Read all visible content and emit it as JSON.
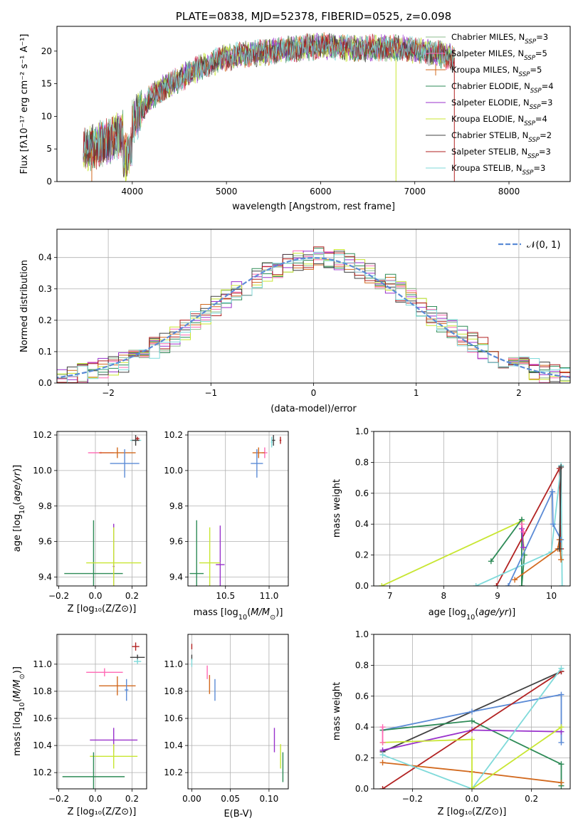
{
  "colors": {
    "Chabrier MILES": "#8fbc8f",
    "Salpeter MILES": "#ff69b4",
    "Kroupa MILES": "#d2691e",
    "Chabrier ELODIE": "#2e8b57",
    "Salpeter ELODIE": "#9932cc",
    "Kroupa ELODIE": "#c8e632",
    "Chabrier STELIB": "#404040",
    "Salpeter STELIB": "#b22222",
    "Kroupa STELIB": "#7fdada",
    "normal": "#5b8bd6"
  },
  "chart_data": [
    {
      "id": "spectrum",
      "type": "line",
      "title": "PLATE=0838, MJD=52378, FIBERID=0525, z=0.098",
      "xlabel": "wavelength [Angstrom, rest frame]",
      "ylabel": "Flux [fλ10⁻¹⁷ erg cm⁻² s⁻¹ A⁻¹]",
      "xlim": [
        3200,
        8650
      ],
      "ylim": [
        0,
        23.8
      ],
      "xticks": [
        4000,
        5000,
        6000,
        7000,
        8000
      ],
      "yticks": [
        0,
        5,
        10,
        15,
        20
      ],
      "grid": false,
      "legend_position": "top-right",
      "continuum_anchor": {
        "x": [
          3480,
          3600,
          3800,
          3950,
          4050,
          4200,
          4400,
          4600,
          4800,
          5000,
          5200,
          5400,
          5600,
          5800,
          6000,
          6200,
          6400,
          6600,
          6800,
          7000,
          7200,
          7420
        ],
        "y": [
          4.5,
          5.5,
          6.5,
          8.0,
          10.0,
          13.0,
          15.0,
          16.5,
          18.0,
          19.0,
          19.5,
          19.8,
          20.2,
          20.5,
          20.8,
          20.6,
          20.4,
          20.5,
          20.5,
          20.2,
          19.8,
          19.0
        ]
      },
      "series": [
        {
          "name": "Chabrier MILES, N_SSP=3",
          "color_key": "Chabrier MILES"
        },
        {
          "name": "Salpeter MILES, N_SSP=5",
          "color_key": "Salpeter MILES"
        },
        {
          "name": "Kroupa MILES, N_SSP=5",
          "color_key": "Kroupa MILES"
        },
        {
          "name": "Chabrier ELODIE, N_SSP=4",
          "color_key": "Chabrier ELODIE"
        },
        {
          "name": "Salpeter ELODIE, N_SSP=3",
          "color_key": "Salpeter ELODIE"
        },
        {
          "name": "Kroupa ELODIE, N_SSP=4",
          "color_key": "Kroupa ELODIE"
        },
        {
          "name": "Chabrier STELIB, N_SSP=2",
          "color_key": "Chabrier STELIB"
        },
        {
          "name": "Salpeter STELIB, N_SSP=3",
          "color_key": "Salpeter STELIB"
        },
        {
          "name": "Kroupa STELIB, N_SSP=3",
          "color_key": "Kroupa STELIB"
        }
      ],
      "legend": [
        {
          "prefix": "Chabrier MILES, N",
          "sub": "SSP",
          "suffix": "=3",
          "color_key": "Chabrier MILES"
        },
        {
          "prefix": "Salpeter MILES, N",
          "sub": "SSP",
          "suffix": "=5",
          "color_key": "Salpeter MILES"
        },
        {
          "prefix": "Kroupa MILES, N",
          "sub": "SSP",
          "suffix": "=5",
          "color_key": "Kroupa MILES"
        },
        {
          "prefix": "Chabrier ELODIE, N",
          "sub": "SSP",
          "suffix": "=4",
          "color_key": "Chabrier ELODIE"
        },
        {
          "prefix": "Salpeter ELODIE, N",
          "sub": "SSP",
          "suffix": "=3",
          "color_key": "Salpeter ELODIE"
        },
        {
          "prefix": "Kroupa ELODIE, N",
          "sub": "SSP",
          "suffix": "=4",
          "color_key": "Kroupa ELODIE"
        },
        {
          "prefix": "Chabrier STELIB, N",
          "sub": "SSP",
          "suffix": "=2",
          "color_key": "Chabrier STELIB"
        },
        {
          "prefix": "Salpeter STELIB, N",
          "sub": "SSP",
          "suffix": "=3",
          "color_key": "Salpeter STELIB"
        },
        {
          "prefix": "Kroupa STELIB, N",
          "sub": "SSP",
          "suffix": "=3",
          "color_key": "Kroupa STELIB"
        }
      ]
    },
    {
      "id": "residuals",
      "type": "step",
      "xlabel": "(data-model)/error",
      "ylabel": "Normed distribution",
      "xlim": [
        -2.5,
        2.5
      ],
      "ylim": [
        0,
        0.49
      ],
      "xticks": [
        -2,
        -1,
        0,
        1,
        2
      ],
      "xtick_labels": [
        "−2",
        "−1",
        "0",
        "1",
        "2"
      ],
      "yticks": [
        0.0,
        0.1,
        0.2,
        0.3,
        0.4
      ],
      "ytick_labels": [
        "0.0",
        "0.1",
        "0.2",
        "0.3",
        "0.4"
      ],
      "grid": true,
      "legend_position": "top-right",
      "legend_label": "𝒩(0, 1)",
      "bin_width": 0.1,
      "series_color_keys": [
        "Chabrier MILES",
        "Salpeter MILES",
        "Kroupa MILES",
        "Chabrier ELODIE",
        "Salpeter ELODIE",
        "Kroupa ELODIE",
        "Chabrier STELIB",
        "Salpeter STELIB",
        "Kroupa STELIB",
        "normal"
      ]
    },
    {
      "id": "age_vs_Z",
      "type": "errorbar",
      "xlabel": "Z [log₁₀(Z/Z⊙)]",
      "ylabel": "age  [log₁₀(age/yr)]",
      "xlim": [
        -0.21,
        0.28
      ],
      "ylim": [
        9.35,
        10.22
      ],
      "xticks": [
        -0.2,
        0.0,
        0.2
      ],
      "xtick_labels": [
        "−0.2",
        "0.0",
        "0.2"
      ],
      "yticks": [
        9.4,
        9.6,
        9.8,
        10.0,
        10.2
      ],
      "ytick_labels": [
        "9.4",
        "9.6",
        "9.8",
        "10.0",
        "10.2"
      ],
      "grid": true,
      "points": [
        {
          "color_key": "Salpeter MILES",
          "x": 0.03,
          "xerr": 0.07,
          "y": 10.1,
          "yerr": 0.005
        },
        {
          "color_key": "Kroupa MILES",
          "x": 0.12,
          "xerr": 0.1,
          "y": 10.1,
          "yerr": 0.03
        },
        {
          "color_key": "normal",
          "x": 0.16,
          "xerr": 0.08,
          "y": 10.04,
          "yerr": 0.08
        },
        {
          "color_key": "Kroupa STELIB",
          "x": 0.22,
          "xerr": 0.03,
          "y": 10.17,
          "yerr": 0.01
        },
        {
          "color_key": "Chabrier STELIB",
          "x": 0.22,
          "xerr": 0.02,
          "y": 10.17,
          "yerr": 0.03
        },
        {
          "color_key": "Salpeter STELIB",
          "x": 0.23,
          "xerr": 0.01,
          "y": 10.18,
          "yerr": 0.01
        },
        {
          "color_key": "Chabrier ELODIE",
          "x": -0.01,
          "xerr": 0.16,
          "y": 9.42,
          "yerr": 0.3
        },
        {
          "color_key": "Salpeter ELODIE",
          "x": 0.1,
          "xerr": 0.005,
          "y": 9.46,
          "yerr": 0.24
        },
        {
          "color_key": "Kroupa ELODIE",
          "x": 0.1,
          "xerr": 0.15,
          "y": 9.48,
          "yerr": 0.2
        }
      ]
    },
    {
      "id": "age_vs_mass",
      "type": "errorbar",
      "xlabel": "mass [log₁₀(M/M⊙)]",
      "xlim": [
        10.07,
        11.22
      ],
      "ylim": [
        9.35,
        10.22
      ],
      "xticks": [
        10.5,
        11.0
      ],
      "xtick_labels": [
        "10.5",
        "11.0"
      ],
      "yticks": [
        9.4,
        9.6,
        9.8,
        10.0,
        10.2
      ],
      "ytick_labels": [
        "9.4",
        "9.6",
        "9.8",
        "10.0",
        "10.2"
      ],
      "grid": true,
      "points": [
        {
          "color_key": "Salpeter MILES",
          "x": 10.95,
          "xerr": 0.03,
          "y": 10.1,
          "yerr": 0.03
        },
        {
          "color_key": "Kroupa MILES",
          "x": 10.88,
          "xerr": 0.07,
          "y": 10.1,
          "yerr": 0.03
        },
        {
          "color_key": "normal",
          "x": 10.86,
          "xerr": 0.07,
          "y": 10.04,
          "yerr": 0.08
        },
        {
          "color_key": "Chabrier STELIB",
          "x": 11.05,
          "xerr": 0.02,
          "y": 10.17,
          "yerr": 0.03
        },
        {
          "color_key": "Kroupa STELIB",
          "x": 11.03,
          "xerr": 0.01,
          "y": 10.16,
          "yerr": 0.03
        },
        {
          "color_key": "Salpeter STELIB",
          "x": 11.13,
          "xerr": 0.01,
          "y": 10.17,
          "yerr": 0.02
        },
        {
          "color_key": "Chabrier ELODIE",
          "x": 10.17,
          "xerr": 0.08,
          "y": 9.42,
          "yerr": 0.3
        },
        {
          "color_key": "Salpeter ELODIE",
          "x": 10.44,
          "xerr": 0.05,
          "y": 9.47,
          "yerr": 0.22
        },
        {
          "color_key": "Kroupa ELODIE",
          "x": 10.32,
          "xerr": 0.12,
          "y": 9.48,
          "yerr": 0.2
        }
      ]
    },
    {
      "id": "weight_vs_age",
      "type": "line",
      "xlabel": "age  [log₁₀(age/yr)]",
      "ylabel": "mass weight",
      "xlim": [
        6.7,
        10.35
      ],
      "ylim": [
        0,
        1
      ],
      "xticks": [
        7,
        8,
        9,
        10
      ],
      "xtick_labels": [
        "7",
        "8",
        "9",
        "10"
      ],
      "yticks": [
        0.0,
        0.2,
        0.4,
        0.6,
        0.8,
        1.0
      ],
      "ytick_labels": [
        "0.0",
        "0.2",
        "0.4",
        "0.6",
        "0.8",
        "1.0"
      ],
      "grid": true,
      "series": [
        {
          "color_key": "Kroupa ELODIE",
          "x": [
            6.85,
            9.45,
            9.5
          ],
          "y": [
            0.0,
            0.42,
            0.2
          ]
        },
        {
          "color_key": "Chabrier ELODIE",
          "x": [
            8.88,
            9.45,
            9.45,
            9.5
          ],
          "y": [
            0.16,
            0.43,
            0.0,
            0.2
          ]
        },
        {
          "color_key": "Salpeter STELIB",
          "x": [
            8.98,
            10.15,
            10.18
          ],
          "y": [
            0.0,
            0.76,
            0.24
          ]
        },
        {
          "color_key": "Kroupa STELIB",
          "x": [
            8.6,
            10.0,
            10.18,
            10.2
          ],
          "y": [
            0.0,
            0.22,
            0.78,
            0.0
          ]
        },
        {
          "color_key": "normal",
          "x": [
            9.2,
            10.02,
            10.03,
            10.18
          ],
          "y": [
            0.0,
            0.61,
            0.4,
            0.3
          ]
        },
        {
          "color_key": "Kroupa MILES",
          "x": [
            9.32,
            10.12,
            10.15,
            10.18
          ],
          "y": [
            0.04,
            0.24,
            0.3,
            0.17
          ]
        },
        {
          "color_key": "Salpeter ELODIE",
          "x": [
            9.45,
            9.48
          ],
          "y": [
            0.37,
            0.25
          ]
        },
        {
          "color_key": "Salpeter MILES",
          "x": [
            9.45,
            9.48
          ],
          "y": [
            0.4,
            0.35
          ]
        },
        {
          "color_key": "Chabrier STELIB",
          "x": [
            10.15,
            10.18
          ],
          "y": [
            0.24,
            0.77
          ]
        }
      ]
    },
    {
      "id": "mass_vs_Z",
      "type": "errorbar",
      "xlabel": "Z [log₁₀(Z/Z⊙)]",
      "ylabel": "mass [log₁₀(M/M⊙)]",
      "xlim": [
        -0.21,
        0.28
      ],
      "ylim": [
        10.08,
        11.22
      ],
      "xticks": [
        -0.2,
        0.0,
        0.2
      ],
      "xtick_labels": [
        "−0.2",
        "0.0",
        "0.2"
      ],
      "yticks": [
        10.2,
        10.4,
        10.6,
        10.8,
        11.0
      ],
      "ytick_labels": [
        "10.2",
        "10.4",
        "10.6",
        "10.8",
        "11.0"
      ],
      "grid": true,
      "points": [
        {
          "color_key": "Salpeter STELIB",
          "x": 0.22,
          "xerr": 0.02,
          "y": 11.13,
          "yerr": 0.03
        },
        {
          "color_key": "Chabrier STELIB",
          "x": 0.23,
          "xerr": 0.04,
          "y": 11.05,
          "yerr": 0.02
        },
        {
          "color_key": "Kroupa STELIB",
          "x": 0.23,
          "xerr": 0.02,
          "y": 11.02,
          "yerr": 0.02
        },
        {
          "color_key": "Salpeter MILES",
          "x": 0.05,
          "xerr": 0.1,
          "y": 10.94,
          "yerr": 0.03
        },
        {
          "color_key": "Kroupa MILES",
          "x": 0.12,
          "xerr": 0.1,
          "y": 10.84,
          "yerr": 0.07
        },
        {
          "color_key": "normal",
          "x": 0.17,
          "xerr": 0.01,
          "y": 10.81,
          "yerr": 0.08
        },
        {
          "color_key": "Salpeter ELODIE",
          "x": 0.1,
          "xerr": 0.13,
          "y": 10.44,
          "yerr": 0.09
        },
        {
          "color_key": "Kroupa ELODIE",
          "x": 0.1,
          "xerr": 0.13,
          "y": 10.32,
          "yerr": 0.09
        },
        {
          "color_key": "Chabrier ELODIE",
          "x": -0.01,
          "xerr": 0.17,
          "y": 10.17,
          "yerr": 0.18
        }
      ]
    },
    {
      "id": "mass_vs_ebv",
      "type": "errorbar",
      "xlabel": "E(B-V)",
      "xlim": [
        -0.005,
        0.125
      ],
      "ylim": [
        10.08,
        11.22
      ],
      "xticks": [
        0.0,
        0.05,
        0.1
      ],
      "xtick_labels": [
        "0.00",
        "0.05",
        "0.10"
      ],
      "yticks": [
        10.2,
        10.4,
        10.6,
        10.8,
        11.0
      ],
      "ytick_labels": [
        "10.2",
        "10.4",
        "10.6",
        "10.8",
        "11.0"
      ],
      "grid": true,
      "points": [
        {
          "color_key": "Salpeter STELIB",
          "x": 0.0,
          "xerr": 0.0,
          "y": 11.13,
          "yerr": 0.02
        },
        {
          "color_key": "Chabrier STELIB",
          "x": 0.0,
          "xerr": 0.0,
          "y": 11.05,
          "yerr": 0.02
        },
        {
          "color_key": "Kroupa STELIB",
          "x": 0.0,
          "xerr": 0.0,
          "y": 11.01,
          "yerr": 0.03
        },
        {
          "color_key": "Salpeter MILES",
          "x": 0.02,
          "xerr": 0.0,
          "y": 10.94,
          "yerr": 0.05
        },
        {
          "color_key": "Kroupa MILES",
          "x": 0.023,
          "xerr": 0.0,
          "y": 10.85,
          "yerr": 0.07
        },
        {
          "color_key": "normal",
          "x": 0.03,
          "xerr": 0.0,
          "y": 10.81,
          "yerr": 0.08
        },
        {
          "color_key": "Salpeter ELODIE",
          "x": 0.107,
          "xerr": 0.0,
          "y": 10.44,
          "yerr": 0.09
        },
        {
          "color_key": "Kroupa ELODIE",
          "x": 0.115,
          "xerr": 0.0,
          "y": 10.32,
          "yerr": 0.09
        },
        {
          "color_key": "Chabrier ELODIE",
          "x": 0.118,
          "xerr": 0.0,
          "y": 10.24,
          "yerr": 0.11
        }
      ]
    },
    {
      "id": "weight_vs_Z",
      "type": "line",
      "xlabel": "Z [log₁₀(Z/Z⊙)]",
      "ylabel": "mass weight",
      "xlim": [
        -0.33,
        0.33
      ],
      "ylim": [
        0,
        1
      ],
      "xticks": [
        -0.2,
        0.0,
        0.2
      ],
      "xtick_labels": [
        "−0.2",
        "0.0",
        "0.2"
      ],
      "yticks": [
        0.0,
        0.2,
        0.4,
        0.6,
        0.8,
        1.0
      ],
      "ytick_labels": [
        "0.0",
        "0.2",
        "0.4",
        "0.6",
        "0.8",
        "1.0"
      ],
      "grid": true,
      "series": [
        {
          "color_key": "Chabrier STELIB",
          "x": [
            -0.3,
            0.3
          ],
          "y": [
            0.24,
            0.76
          ]
        },
        {
          "color_key": "normal",
          "x": [
            -0.3,
            0.0,
            0.3,
            0.3
          ],
          "y": [
            0.38,
            0.5,
            0.61,
            0.3
          ]
        },
        {
          "color_key": "Chabrier ELODIE",
          "x": [
            -0.3,
            0.0,
            0.3,
            0.3
          ],
          "y": [
            0.38,
            0.44,
            0.16,
            0.02
          ]
        },
        {
          "color_key": "Salpeter ELODIE",
          "x": [
            -0.3,
            0.0,
            0.3
          ],
          "y": [
            0.25,
            0.38,
            0.37
          ]
        },
        {
          "color_key": "Salpeter STELIB",
          "x": [
            -0.3,
            0.3
          ],
          "y": [
            0.0,
            0.76
          ]
        },
        {
          "color_key": "Kroupa MILES",
          "x": [
            -0.3,
            0.0,
            0.3
          ],
          "y": [
            0.17,
            0.11,
            0.04
          ]
        },
        {
          "color_key": "Kroupa STELIB",
          "x": [
            -0.3,
            0.0,
            0.3
          ],
          "y": [
            0.22,
            0.0,
            0.78
          ]
        },
        {
          "color_key": "Kroupa ELODIE",
          "x": [
            -0.3,
            0.0,
            0.0,
            0.0,
            0.3
          ],
          "y": [
            0.3,
            0.32,
            0.0,
            0.0,
            0.4
          ]
        },
        {
          "color_key": "Salpeter MILES",
          "x": [
            -0.3,
            -0.3
          ],
          "y": [
            0.4,
            0.3
          ]
        }
      ]
    }
  ]
}
